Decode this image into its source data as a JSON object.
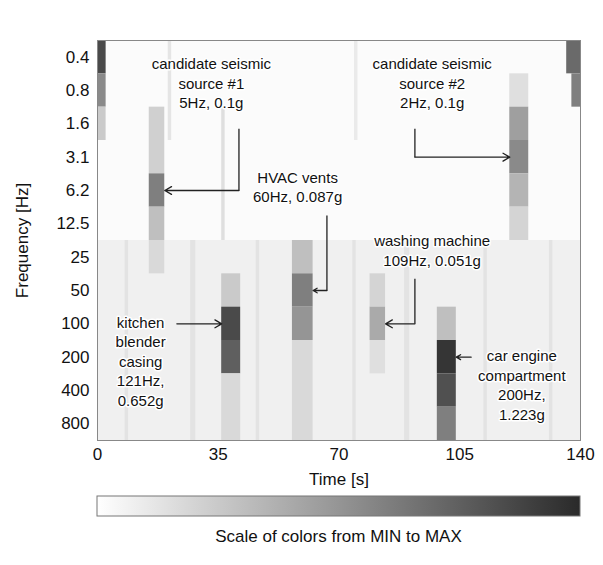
{
  "chart_data": {
    "type": "heatmap",
    "x_label": "Time [s]",
    "y_label": "Frequency [Hz]",
    "xlim": [
      0,
      140
    ],
    "xticks": [
      0,
      35,
      70,
      105,
      140
    ],
    "y_categories": [
      0.4,
      0.8,
      1.6,
      3.1,
      6.2,
      12.5,
      25,
      50,
      100,
      200,
      400,
      800
    ],
    "cells": [
      {
        "t0": 0,
        "t1": 140,
        "frequency": [
          0.4,
          12.5
        ],
        "value": 0.02
      },
      {
        "t0": 0,
        "t1": 140,
        "frequency": [
          25,
          800
        ],
        "value": 0.07
      },
      {
        "t0": 8,
        "t1": 9,
        "frequency": [
          25,
          800
        ],
        "value": 0.13
      },
      {
        "t0": 27,
        "t1": 28.5,
        "frequency": [
          25,
          800
        ],
        "value": 0.13
      },
      {
        "t0": 46,
        "t1": 47,
        "frequency": [
          25,
          800
        ],
        "value": 0.13
      },
      {
        "t0": 74,
        "t1": 75,
        "frequency": [
          25,
          800
        ],
        "value": 0.13
      },
      {
        "t0": 89,
        "t1": 90.5,
        "frequency": [
          25,
          800
        ],
        "value": 0.13
      },
      {
        "t0": 112,
        "t1": 113,
        "frequency": [
          25,
          800
        ],
        "value": 0.13
      },
      {
        "t0": 131,
        "t1": 132,
        "frequency": [
          25,
          800
        ],
        "value": 0.13
      },
      {
        "t0": 20.5,
        "t1": 21.5,
        "frequency": [
          0.4,
          1.6
        ],
        "value": 0.12
      },
      {
        "t0": 36,
        "t1": 37,
        "frequency": [
          1.6,
          12.5
        ],
        "value": 0.15
      },
      {
        "t0": 74.5,
        "t1": 75.5,
        "frequency": [
          0.4,
          1.6
        ],
        "value": 0.1
      },
      {
        "t0": 0,
        "t1": 2.5,
        "frequency": [
          0.4,
          0.4
        ],
        "value": 0.85
      },
      {
        "t0": 0,
        "t1": 2.5,
        "frequency": [
          0.8,
          0.8
        ],
        "value": 0.55
      },
      {
        "t0": 0,
        "t1": 2.5,
        "frequency": [
          1.6,
          1.6
        ],
        "value": 0.25
      },
      {
        "t0": 136,
        "t1": 140,
        "frequency": [
          0.4,
          0.4
        ],
        "value": 0.7
      },
      {
        "t0": 137.5,
        "t1": 140,
        "frequency": [
          0.8,
          0.8
        ],
        "value": 0.6
      },
      {
        "t0": 15,
        "t1": 19.5,
        "frequency": [
          1.6,
          3.1
        ],
        "value": 0.22
      },
      {
        "t0": 15,
        "t1": 19.5,
        "frequency": [
          6.2,
          6.2
        ],
        "value": 0.6
      },
      {
        "t0": 15,
        "t1": 19.5,
        "frequency": [
          12.5,
          12.5
        ],
        "value": 0.3
      },
      {
        "t0": 15,
        "t1": 19.5,
        "frequency": [
          25,
          25
        ],
        "value": 0.18
      },
      {
        "t0": 36,
        "t1": 41.5,
        "frequency": [
          50,
          50
        ],
        "value": 0.25
      },
      {
        "t0": 36,
        "t1": 41.5,
        "frequency": [
          100,
          100
        ],
        "value": 0.85
      },
      {
        "t0": 36,
        "t1": 41.5,
        "frequency": [
          200,
          200
        ],
        "value": 0.75
      },
      {
        "t0": 36,
        "t1": 41.5,
        "frequency": [
          400,
          800
        ],
        "value": 0.18
      },
      {
        "t0": 56.5,
        "t1": 62.5,
        "frequency": [
          25,
          25
        ],
        "value": 0.3
      },
      {
        "t0": 56.5,
        "t1": 62.5,
        "frequency": [
          50,
          50
        ],
        "value": 0.6
      },
      {
        "t0": 56.5,
        "t1": 62.5,
        "frequency": [
          100,
          100
        ],
        "value": 0.5
      },
      {
        "t0": 56.5,
        "t1": 62.5,
        "frequency": [
          200,
          800
        ],
        "value": 0.18
      },
      {
        "t0": 79,
        "t1": 83.5,
        "frequency": [
          50,
          50
        ],
        "value": 0.2
      },
      {
        "t0": 79,
        "t1": 83.5,
        "frequency": [
          100,
          100
        ],
        "value": 0.4
      },
      {
        "t0": 79,
        "t1": 83.5,
        "frequency": [
          200,
          200
        ],
        "value": 0.15
      },
      {
        "t0": 98.5,
        "t1": 104,
        "frequency": [
          100,
          100
        ],
        "value": 0.3
      },
      {
        "t0": 98.5,
        "t1": 104,
        "frequency": [
          200,
          200
        ],
        "value": 0.95
      },
      {
        "t0": 98.5,
        "t1": 104,
        "frequency": [
          400,
          400
        ],
        "value": 0.82
      },
      {
        "t0": 98.5,
        "t1": 104,
        "frequency": [
          800,
          800
        ],
        "value": 0.6
      },
      {
        "t0": 119.5,
        "t1": 125,
        "frequency": [
          0.8,
          0.8
        ],
        "value": 0.15
      },
      {
        "t0": 119.5,
        "t1": 125,
        "frequency": [
          1.6,
          1.6
        ],
        "value": 0.45
      },
      {
        "t0": 119.5,
        "t1": 125,
        "frequency": [
          3.1,
          3.1
        ],
        "value": 0.55
      },
      {
        "t0": 119.5,
        "t1": 125,
        "frequency": [
          6.2,
          6.2
        ],
        "value": 0.35
      },
      {
        "t0": 119.5,
        "t1": 125,
        "frequency": [
          12.5,
          12.5
        ],
        "value": 0.2
      }
    ],
    "colorbar": {
      "label": "Scale of colors from MIN to MAX",
      "range": [
        0,
        1
      ]
    },
    "annotations": [
      {
        "text": "candidate seismic source #1",
        "detail": "5Hz, 0.1g",
        "time": 19.5,
        "frequency": 6.2
      },
      {
        "text": "candidate seismic source #2",
        "detail": "2Hz, 0.1g",
        "time": 119.5,
        "frequency": 3.1
      },
      {
        "text": "HVAC vents",
        "detail": "60Hz, 0.087g",
        "time": 62.5,
        "frequency": 50
      },
      {
        "text": "washing machine",
        "detail": "109Hz, 0.051g",
        "time": 83.5,
        "frequency": 100
      },
      {
        "text": "kitchen blender casing",
        "detail": "121Hz, 0.652g",
        "time": 36,
        "frequency": 100
      },
      {
        "text": "car engine compartment",
        "detail": "200Hz, 1.223g",
        "time": 104,
        "frequency": 200
      }
    ]
  }
}
